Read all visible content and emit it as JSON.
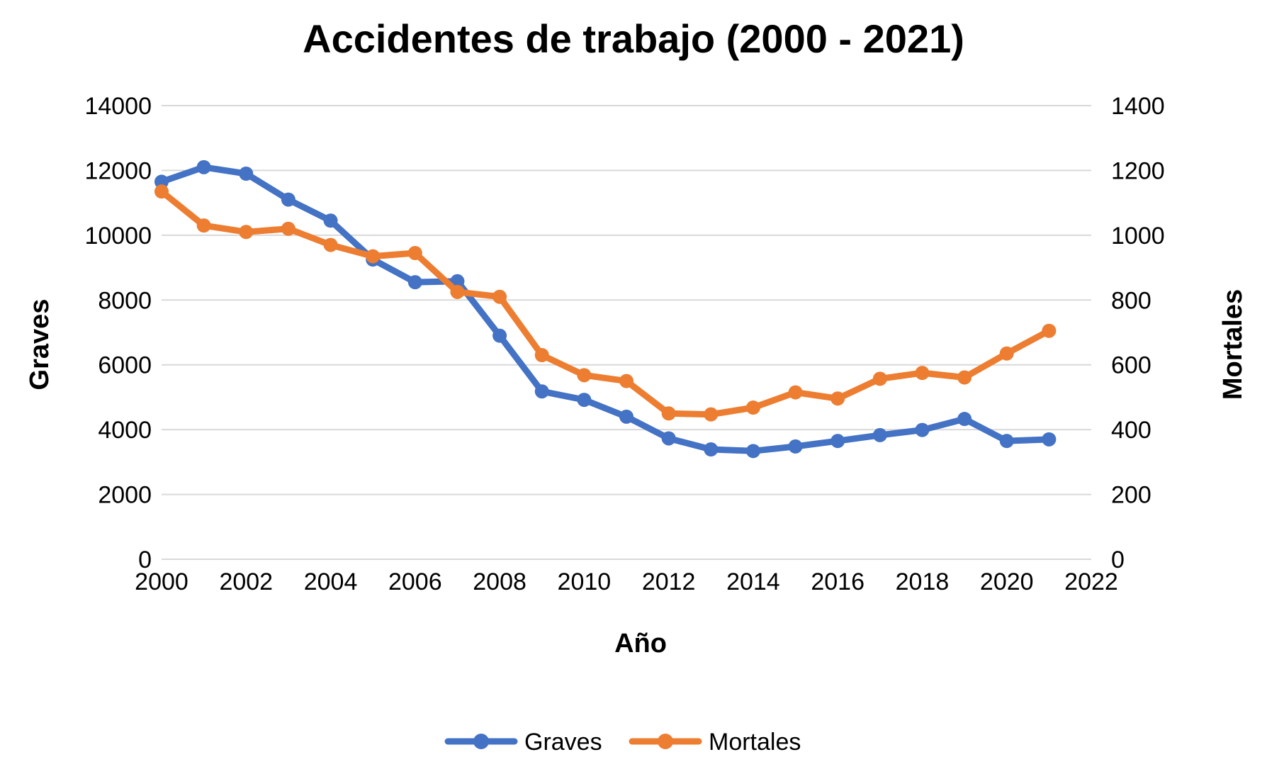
{
  "chart_data": {
    "type": "line",
    "title": "Accidentes de trabajo (2000 - 2021)",
    "xlabel": "Año",
    "ylabel": "Graves",
    "y2label": "Mortales",
    "xlim": [
      2000,
      2022
    ],
    "xticks": [
      2000,
      2002,
      2004,
      2006,
      2008,
      2010,
      2012,
      2014,
      2016,
      2018,
      2020,
      2022
    ],
    "ylim": [
      0,
      14000
    ],
    "yticks": [
      0,
      2000,
      4000,
      6000,
      8000,
      10000,
      12000,
      14000
    ],
    "y2lim": [
      0,
      1400
    ],
    "y2ticks": [
      0,
      200,
      400,
      600,
      800,
      1000,
      1200,
      1400
    ],
    "grid": true,
    "legend_position": "bottom",
    "x": [
      2000,
      2001,
      2002,
      2003,
      2004,
      2005,
      2006,
      2007,
      2008,
      2009,
      2010,
      2011,
      2012,
      2013,
      2014,
      2015,
      2016,
      2017,
      2018,
      2019,
      2020,
      2021
    ],
    "series": [
      {
        "name": "Graves",
        "axis": "left",
        "color": "#4472c4",
        "values": [
          11650,
          12100,
          11900,
          11100,
          10450,
          9250,
          8550,
          8580,
          6900,
          5180,
          4920,
          4400,
          3730,
          3390,
          3340,
          3480,
          3650,
          3830,
          3990,
          4330,
          3650,
          3700
        ]
      },
      {
        "name": "Mortales",
        "axis": "right",
        "color": "#ed7d31",
        "values": [
          1135,
          1030,
          1010,
          1020,
          970,
          935,
          945,
          825,
          810,
          630,
          568,
          550,
          450,
          447,
          468,
          515,
          496,
          557,
          575,
          561,
          635,
          705
        ]
      }
    ]
  }
}
